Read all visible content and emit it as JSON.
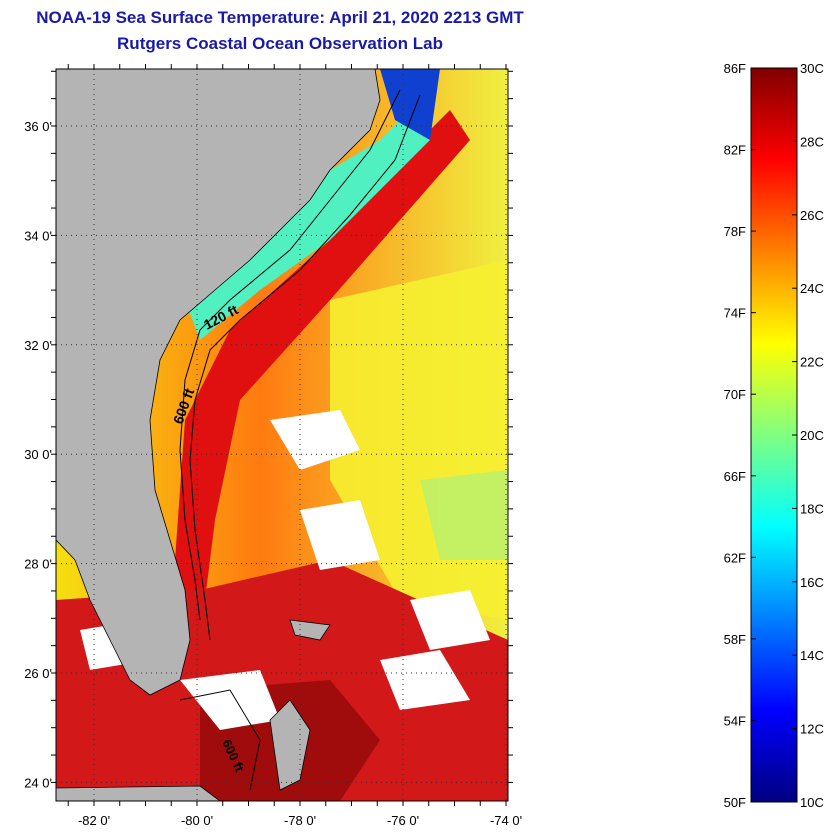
{
  "title_line1": "NOAA-19 Sea Surface Temperature:  April 21, 2020 2213 GMT",
  "title_line2": "Rutgers Coastal Ocean Observation Lab",
  "map": {
    "lat_labels": [
      {
        "value": 36,
        "text": "36 0'"
      },
      {
        "value": 34,
        "text": "34 0'"
      },
      {
        "value": 32,
        "text": "32 0'"
      },
      {
        "value": 30,
        "text": "30 0'"
      },
      {
        "value": 28,
        "text": "28 0'"
      },
      {
        "value": 26,
        "text": "26 0'"
      },
      {
        "value": 24,
        "text": "24 0'"
      }
    ],
    "lon_labels": [
      {
        "value": -82,
        "text": "-82 0'"
      },
      {
        "value": -80,
        "text": "-80 0'"
      },
      {
        "value": -78,
        "text": "-78 0'"
      },
      {
        "value": -76,
        "text": "-76 0'"
      },
      {
        "value": -74,
        "text": "-74 0'"
      }
    ],
    "contour_labels": [
      "120 ft",
      "600 ft",
      "600 ft"
    ]
  },
  "colorbar": {
    "f_labels": [
      "86F",
      "82F",
      "78F",
      "74F",
      "70F",
      "66F",
      "62F",
      "58F",
      "54F",
      "50F"
    ],
    "c_labels": [
      "30C",
      "28C",
      "26C",
      "24C",
      "22C",
      "20C",
      "18C",
      "16C",
      "14C",
      "12C",
      "10C"
    ],
    "colors": [
      "#000080",
      "#0000ff",
      "#0080ff",
      "#00ffff",
      "#80ff80",
      "#ffff00",
      "#ff8000",
      "#ff0000",
      "#800000"
    ]
  }
}
